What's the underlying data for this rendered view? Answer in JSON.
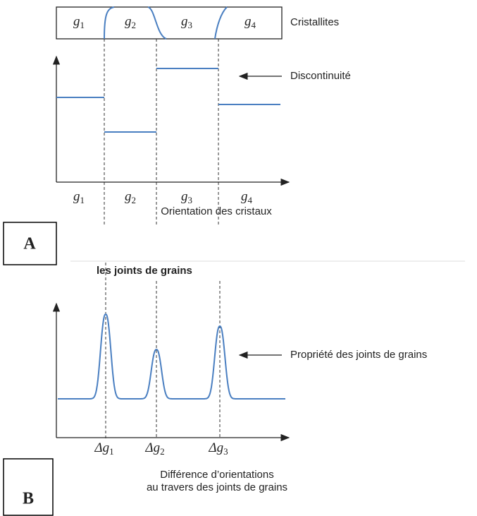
{
  "panel_a": {
    "label": "A",
    "crystallites_label": "Cristallites",
    "grains": [
      {
        "symbol": "g",
        "sub": "1"
      },
      {
        "symbol": "g",
        "sub": "2"
      },
      {
        "symbol": "g",
        "sub": "3"
      },
      {
        "symbol": "g",
        "sub": "4"
      }
    ],
    "annotation": "Discontinuité",
    "x_axis_grains": [
      {
        "symbol": "g",
        "sub": "1"
      },
      {
        "symbol": "g",
        "sub": "2"
      },
      {
        "symbol": "g",
        "sub": "3"
      },
      {
        "symbol": "g",
        "sub": "4"
      }
    ],
    "x_axis_label": "Orientation des cristaux"
  },
  "panel_b": {
    "label": "B",
    "heading": "les joints de grains",
    "annotation": "Propriété des joints de grains",
    "boundaries": [
      {
        "symbol": "Δg",
        "sub": "1"
      },
      {
        "symbol": "Δg",
        "sub": "2"
      },
      {
        "symbol": "Δg",
        "sub": "3"
      }
    ],
    "x_axis_label_lines": [
      "Différence d’orientations",
      "au travers des joints de grains"
    ]
  }
}
